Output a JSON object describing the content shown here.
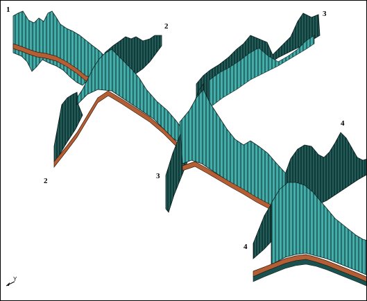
{
  "diagram": {
    "colors": {
      "front_face": "#3aa29f",
      "dark_face": "#1b524f",
      "hatch": "#0c2221",
      "base_layer": "#b35e34",
      "base_edge": "#3a1a0a",
      "background": "#ffffff"
    },
    "profiles": [
      {
        "id": "section-1-2",
        "start_label": "1",
        "end_label": "2"
      },
      {
        "id": "section-2-3",
        "start_label": "2",
        "end_label": "3"
      },
      {
        "id": "section-3-4",
        "start_label": "3",
        "end_label": "4"
      },
      {
        "id": "section-4-4",
        "start_label": "4",
        "end_label": "4"
      }
    ],
    "axis": {
      "label": "Y"
    }
  }
}
